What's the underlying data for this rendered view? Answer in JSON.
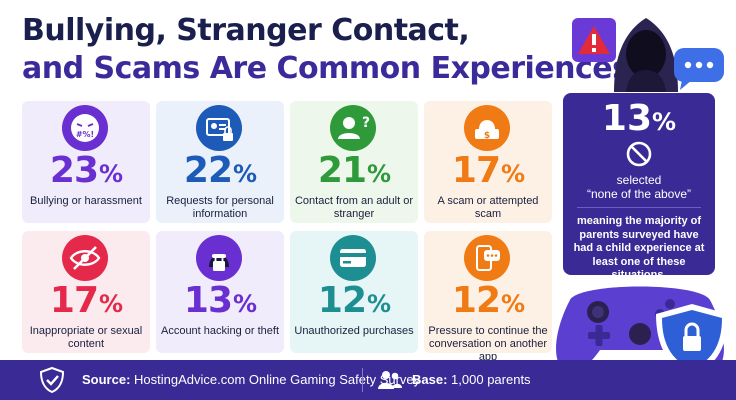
{
  "title": {
    "line1": "Bullying, Stranger Contact,",
    "line2": "and Scams Are Common Experiences"
  },
  "chart_data": {
    "type": "table",
    "unit": "%",
    "items": [
      {
        "label": "Bullying or harassment",
        "value": 23,
        "icon": "angry-face-icon",
        "color": "#6a2fd0"
      },
      {
        "label": "Requests for personal information",
        "value": 22,
        "icon": "id-card-lock-icon",
        "color": "#1e5bb8"
      },
      {
        "label": "Contact from an adult or stranger",
        "value": 21,
        "icon": "unknown-person-icon",
        "color": "#2f9a3a"
      },
      {
        "label": "A scam or attempted scam",
        "value": 17,
        "icon": "scam-laptop-icon",
        "color": "#f07a14"
      },
      {
        "label": "Inappropriate or sexual content",
        "value": 17,
        "icon": "eye-blocked-icon",
        "color": "#e4294a"
      },
      {
        "label": "Account hacking or theft",
        "value": 13,
        "icon": "hacker-lock-icon",
        "color": "#6a2fd0"
      },
      {
        "label": "Unauthorized purchases",
        "value": 12,
        "icon": "credit-card-icon",
        "color": "#1d8f93"
      },
      {
        "label": "Pressure to continue the conversation on another app",
        "value": 12,
        "icon": "phone-chat-icon",
        "color": "#f07a14"
      }
    ],
    "none_of_the_above": {
      "value": 13,
      "selected_text": "selected",
      "selected_quote": "“none of the above”",
      "description": "meaning the majority of parents surveyed have had a child experience at least one of these situations."
    }
  },
  "footer": {
    "source_label": "Source:",
    "source_text": "HostingAdvice.com Online Gaming Safety Survey",
    "base_label": "Base:",
    "base_text": "1,000 parents"
  }
}
